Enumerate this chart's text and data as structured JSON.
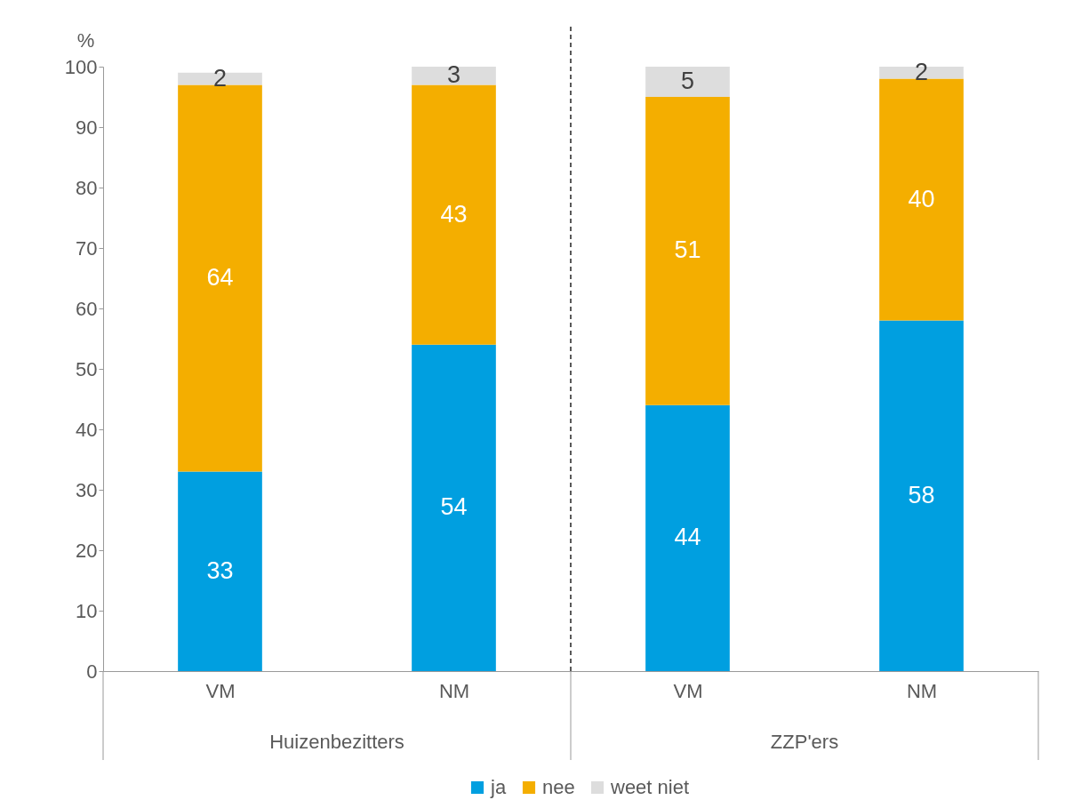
{
  "chart_data": {
    "type": "bar",
    "stacked": true,
    "ylabel": "%",
    "categories": [
      "VM",
      "NM",
      "VM",
      "NM"
    ],
    "series": [
      {
        "name": "ja",
        "color": "#009fe0",
        "values": [
          33,
          54,
          44,
          58
        ]
      },
      {
        "name": "nee",
        "color": "#f4ae00",
        "values": [
          64,
          43,
          51,
          40
        ]
      },
      {
        "name": "weet niet",
        "color": "#dddddd",
        "values": [
          2,
          3,
          5,
          2
        ]
      }
    ],
    "ylim": [
      0,
      100
    ],
    "yticks": [
      0,
      10,
      20,
      30,
      40,
      50,
      60,
      70,
      80,
      90,
      100
    ],
    "grid": false,
    "legend": "bottom",
    "data_labels": true,
    "annotations": [
      "Huizenbezitters",
      "ZZP'ers"
    ]
  }
}
